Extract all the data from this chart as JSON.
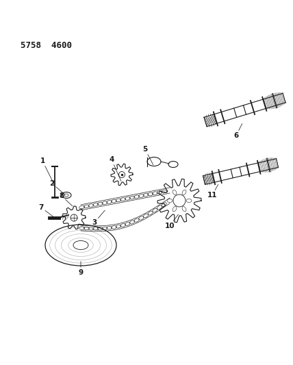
{
  "title": "5758  4600",
  "bg_color": "#ffffff",
  "line_color": "#1a1a1a",
  "label_color": "#1a1a1a",
  "label_fontsize": 7.5
}
